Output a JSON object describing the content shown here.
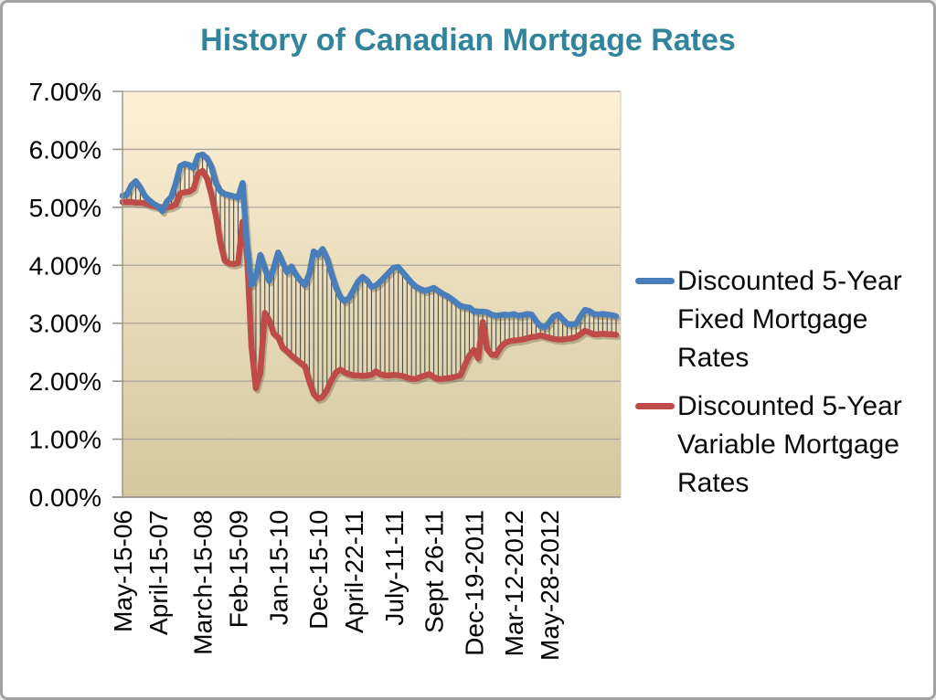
{
  "window": {
    "background": "#ffffff",
    "border_color": "#a2a2a2"
  },
  "chart_data": {
    "type": "line",
    "title": "History of Canadian Mortgage Rates",
    "title_color": "#31849B",
    "legend_position": "right",
    "grid": true,
    "y_axis": {
      "min": 0,
      "max": 7,
      "tick_step": 1,
      "tick_labels": [
        "7.00%",
        "6.00%",
        "5.00%",
        "4.00%",
        "3.00%",
        "2.00%",
        "1.00%",
        "0.00%"
      ]
    },
    "x_axis": {
      "tick_labels": [
        {
          "label": "May-15-06",
          "index": 0
        },
        {
          "label": "April-15-07",
          "index": 8
        },
        {
          "label": "March-15-08",
          "index": 18
        },
        {
          "label": "Feb-15-09",
          "index": 26
        },
        {
          "label": "Jan-15-10",
          "index": 35
        },
        {
          "label": "Dec-15-10",
          "index": 44
        },
        {
          "label": "April-22-11",
          "index": 52
        },
        {
          "label": "July-11-11",
          "index": 61
        },
        {
          "label": "Sept 26-11",
          "index": 70
        },
        {
          "label": "Dec-19-2011",
          "index": 79
        },
        {
          "label": "Mar-12-2012",
          "index": 88
        },
        {
          "label": "May-28-2012",
          "index": 96
        }
      ]
    },
    "plot_style": {
      "bg_top": "#FDF0D6",
      "bg_bottom": "#D3C79E",
      "gridline_color": "#aaa59b",
      "axis_color": "#999287",
      "tick_color": "#999287",
      "hilo_line_color": "#3d3d3d",
      "shadow_color": "rgba(95,85,60,0.35)"
    },
    "series": [
      {
        "name": "Discounted 5-Year Fixed Mortgage Rates",
        "color": "#4A7EBB",
        "values": [
          5.2,
          5.22,
          5.38,
          5.45,
          5.34,
          5.2,
          5.12,
          5.06,
          5.02,
          4.93,
          5.1,
          5.18,
          5.42,
          5.71,
          5.75,
          5.73,
          5.68,
          5.89,
          5.91,
          5.85,
          5.7,
          5.42,
          5.28,
          5.23,
          5.21,
          5.19,
          5.17,
          5.42,
          4.35,
          3.66,
          3.8,
          4.18,
          3.95,
          3.73,
          3.95,
          4.22,
          4.05,
          3.88,
          3.98,
          3.84,
          3.74,
          3.66,
          3.85,
          4.24,
          4.18,
          4.28,
          4.12,
          3.86,
          3.62,
          3.45,
          3.38,
          3.44,
          3.58,
          3.72,
          3.8,
          3.74,
          3.63,
          3.65,
          3.72,
          3.8,
          3.88,
          3.96,
          3.97,
          3.88,
          3.79,
          3.7,
          3.63,
          3.59,
          3.56,
          3.58,
          3.61,
          3.56,
          3.51,
          3.47,
          3.42,
          3.36,
          3.3,
          3.28,
          3.27,
          3.21,
          3.2,
          3.2,
          3.19,
          3.15,
          3.13,
          3.14,
          3.15,
          3.14,
          3.16,
          3.13,
          3.14,
          3.16,
          3.15,
          3.04,
          2.95,
          2.93,
          3.02,
          3.12,
          3.15,
          3.07,
          2.99,
          2.98,
          2.99,
          3.12,
          3.23,
          3.21,
          3.16,
          3.15,
          3.16,
          3.15,
          3.14,
          3.12
        ]
      },
      {
        "name": "Discounted 5-Year Variable Mortgage Rates",
        "color": "#BE4B48",
        "values": [
          5.09,
          5.09,
          5.09,
          5.08,
          5.08,
          5.07,
          5.04,
          5.02,
          5.01,
          5.0,
          5.0,
          5.01,
          5.05,
          5.24,
          5.26,
          5.27,
          5.32,
          5.58,
          5.63,
          5.5,
          5.22,
          4.85,
          4.4,
          4.08,
          4.03,
          4.02,
          4.04,
          4.75,
          4.2,
          2.6,
          1.88,
          2.15,
          3.18,
          3.05,
          2.82,
          2.76,
          2.58,
          2.52,
          2.44,
          2.38,
          2.32,
          2.26,
          2.0,
          1.78,
          1.7,
          1.73,
          1.85,
          2.02,
          2.15,
          2.2,
          2.15,
          2.12,
          2.1,
          2.1,
          2.09,
          2.1,
          2.11,
          2.17,
          2.12,
          2.1,
          2.1,
          2.11,
          2.1,
          2.09,
          2.06,
          2.04,
          2.04,
          2.07,
          2.1,
          2.12,
          2.07,
          2.04,
          2.04,
          2.05,
          2.06,
          2.08,
          2.1,
          2.28,
          2.44,
          2.54,
          2.39,
          3.02,
          2.56,
          2.46,
          2.45,
          2.58,
          2.66,
          2.69,
          2.7,
          2.71,
          2.72,
          2.74,
          2.76,
          2.77,
          2.79,
          2.77,
          2.75,
          2.73,
          2.72,
          2.72,
          2.73,
          2.74,
          2.76,
          2.81,
          2.87,
          2.84,
          2.81,
          2.81,
          2.82,
          2.81,
          2.81,
          2.8
        ]
      }
    ]
  }
}
